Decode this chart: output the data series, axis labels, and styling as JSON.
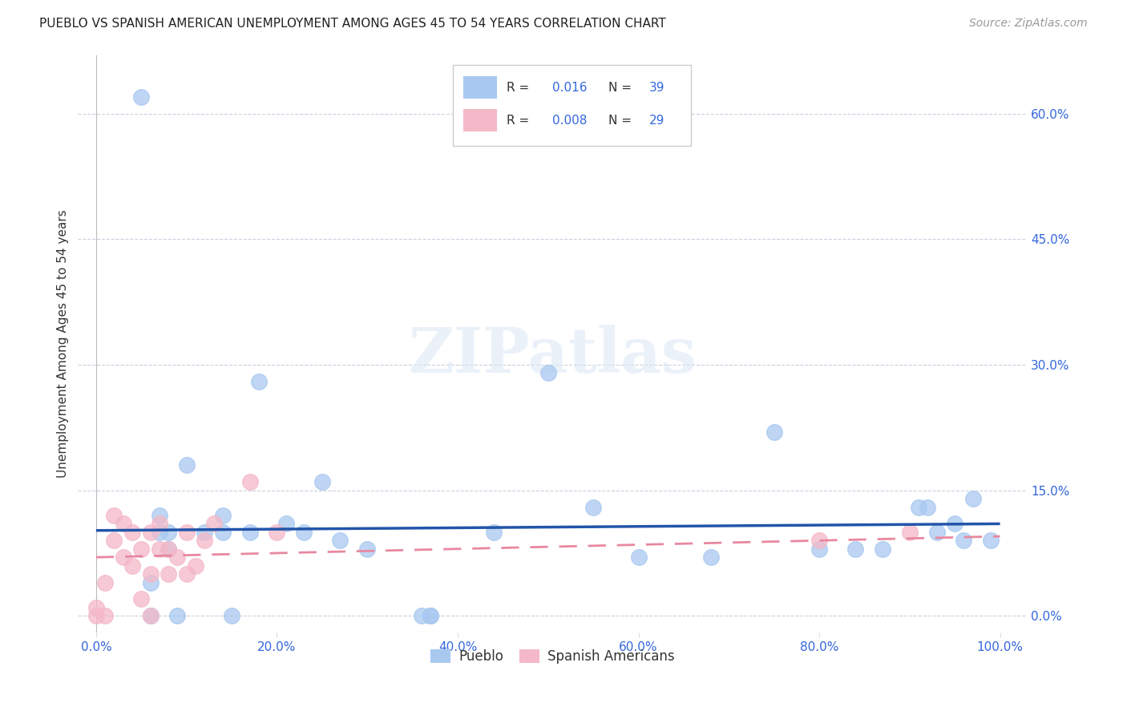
{
  "title": "PUEBLO VS SPANISH AMERICAN UNEMPLOYMENT AMONG AGES 45 TO 54 YEARS CORRELATION CHART",
  "source": "Source: ZipAtlas.com",
  "xlabel_ticks": [
    "0.0%",
    "20.0%",
    "40.0%",
    "60.0%",
    "80.0%",
    "100.0%"
  ],
  "xlabel_vals": [
    0,
    20,
    40,
    60,
    80,
    100
  ],
  "ylabel": "Unemployment Among Ages 45 to 54 years",
  "ylabel_ticks": [
    "0.0%",
    "15.0%",
    "30.0%",
    "45.0%",
    "60.0%"
  ],
  "ylabel_vals": [
    0,
    15,
    30,
    45,
    60
  ],
  "xlim": [
    -2,
    103
  ],
  "ylim": [
    -2,
    67
  ],
  "pueblo_color": "#a8c8f0",
  "spanish_color": "#f4b8c8",
  "pueblo_line_color": "#2255aa",
  "spanish_line_color": "#e888a0",
  "watermark": "ZIPatlas",
  "pueblo_line": [
    0,
    100,
    10.2,
    11.0
  ],
  "spanish_line": [
    0,
    100,
    7.0,
    9.5
  ],
  "pueblo_x": [
    5,
    6,
    6,
    7,
    7,
    8,
    8,
    9,
    10,
    12,
    14,
    14,
    15,
    17,
    18,
    21,
    23,
    25,
    27,
    30,
    36,
    37,
    37,
    44,
    50,
    55,
    60,
    68,
    75,
    80,
    84,
    87,
    91,
    92,
    93,
    95,
    96,
    97,
    99
  ],
  "pueblo_y": [
    62,
    0,
    4,
    10,
    12,
    8,
    10,
    0,
    18,
    10,
    10,
    12,
    0,
    10,
    28,
    11,
    10,
    16,
    9,
    8,
    0,
    0,
    0,
    10,
    29,
    13,
    7,
    7,
    22,
    8,
    8,
    8,
    13,
    13,
    10,
    11,
    9,
    14,
    9
  ],
  "spanish_x": [
    0,
    0,
    1,
    1,
    2,
    2,
    3,
    3,
    4,
    4,
    5,
    5,
    6,
    6,
    6,
    7,
    7,
    8,
    8,
    9,
    10,
    10,
    11,
    12,
    13,
    17,
    20,
    80,
    90
  ],
  "spanish_y": [
    0,
    1,
    0,
    4,
    9,
    12,
    11,
    7,
    6,
    10,
    2,
    8,
    0,
    5,
    10,
    11,
    8,
    5,
    8,
    7,
    5,
    10,
    6,
    9,
    11,
    16,
    10,
    9,
    10
  ],
  "legend_pueblo_R": "0.016",
  "legend_pueblo_N": "39",
  "legend_spanish_R": "0.008",
  "legend_spanish_N": "29"
}
